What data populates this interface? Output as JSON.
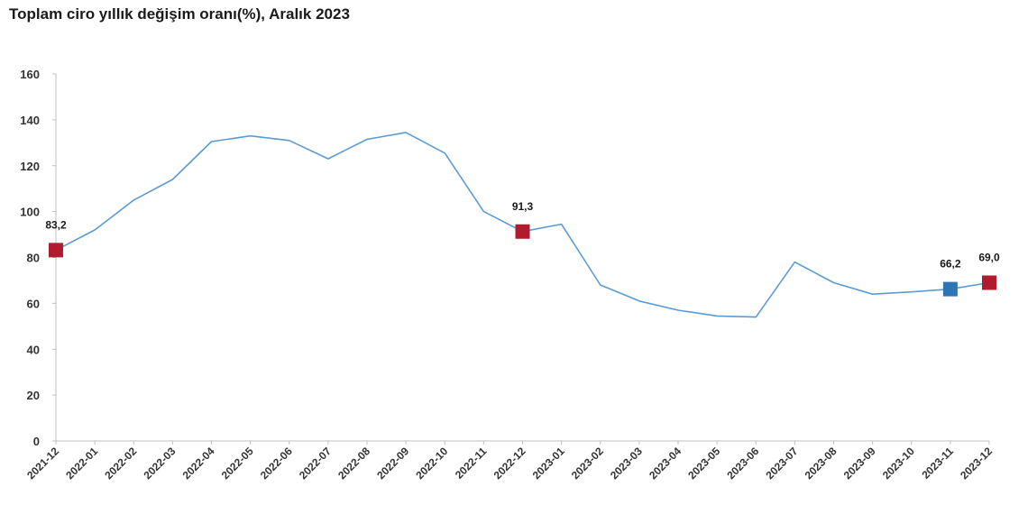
{
  "chart_data": {
    "type": "line",
    "title": "Toplam ciro yıllık değişim oranı(%), Aralık 2023",
    "xlabel": "",
    "ylabel": "",
    "ylim": [
      0,
      160
    ],
    "yticks": [
      "0",
      "20",
      "40",
      "60",
      "80",
      "100",
      "120",
      "140",
      "160"
    ],
    "categories": [
      "2021-12",
      "2022-01",
      "2022-02",
      "2022-03",
      "2022-04",
      "2022-05",
      "2022-06",
      "2022-07",
      "2022-08",
      "2022-09",
      "2022-10",
      "2022-11",
      "2022-12",
      "2023-01",
      "2023-02",
      "2023-03",
      "2023-04",
      "2023-05",
      "2023-06",
      "2023-07",
      "2023-08",
      "2023-09",
      "2023-10",
      "2023-11",
      "2023-12"
    ],
    "series": [
      {
        "name": "Toplam ciro yıllık değişim oranı",
        "color": "#5b9bd5",
        "values": [
          83.2,
          92,
          105,
          114,
          130.5,
          133,
          131,
          123,
          131.5,
          134.5,
          125.5,
          100,
          91.3,
          94.5,
          68,
          61,
          57,
          54.5,
          54,
          78,
          69,
          64,
          65,
          66.2,
          69.0
        ]
      }
    ],
    "highlights": [
      {
        "index": 0,
        "label": "83,2",
        "color": "#b01c2e"
      },
      {
        "index": 12,
        "label": "91,3",
        "color": "#b01c2e"
      },
      {
        "index": 23,
        "label": "66,2",
        "color": "#2e75b6"
      },
      {
        "index": 24,
        "label": "69,0",
        "color": "#b01c2e"
      }
    ]
  }
}
